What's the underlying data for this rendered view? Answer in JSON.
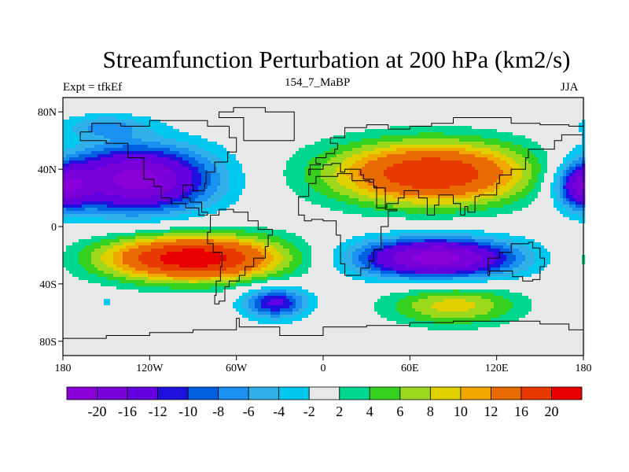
{
  "title": "Streamfunction Perturbation at 200 hPa (km2/s)",
  "left_label": "Expt = tfkEf",
  "center_label": "154_7_MaBP",
  "right_label": "JJA",
  "map": {
    "lon_range": [
      -180,
      180
    ],
    "lat_range": [
      -90,
      90
    ],
    "lon_ticks": [
      {
        "value": -180,
        "label": "180"
      },
      {
        "value": -120,
        "label": "120W"
      },
      {
        "value": -60,
        "label": "60W"
      },
      {
        "value": 0,
        "label": "0"
      },
      {
        "value": 60,
        "label": "60E"
      },
      {
        "value": 120,
        "label": "120E"
      },
      {
        "value": 180,
        "label": "180"
      }
    ],
    "lat_ticks": [
      {
        "value": 80,
        "label": "80N"
      },
      {
        "value": 40,
        "label": "40N"
      },
      {
        "value": 0,
        "label": "0"
      },
      {
        "value": -40,
        "label": "40S"
      },
      {
        "value": -80,
        "label": "80S"
      }
    ],
    "missing_color": "#e8e8e8",
    "features": [
      {
        "name": "north-pacific-low",
        "lon": -130,
        "lat": 33,
        "rlon": 52,
        "rlat": 23,
        "amp": -22
      },
      {
        "name": "east-pacific-west",
        "lon": 180,
        "lat": 28,
        "rlon": 18,
        "rlat": 15,
        "amp": -14
      },
      {
        "name": "south-pacific-high",
        "lon": -90,
        "lat": -22,
        "rlon": 62,
        "rlat": 16,
        "amp": 23
      },
      {
        "name": "south-atlantic-low",
        "lon": -33,
        "lat": -53,
        "rlon": 22,
        "rlat": 11,
        "amp": -13
      },
      {
        "name": "small-low-patch",
        "lon": -150,
        "lat": -52,
        "rlon": 5,
        "rlat": 4,
        "amp": -3
      },
      {
        "name": "eurasia-high",
        "lon": 75,
        "lat": 37,
        "rlon": 70,
        "rlat": 22,
        "amp": 20
      },
      {
        "name": "indian-ocean-low",
        "lon": 78,
        "lat": -22,
        "rlon": 55,
        "rlat": 14,
        "amp": -22
      },
      {
        "name": "southern-ocean-high",
        "lon": 90,
        "lat": -55,
        "rlon": 45,
        "rlat": 14,
        "amp": 9
      },
      {
        "name": "far-northwest",
        "lon": -150,
        "lat": 70,
        "rlon": 30,
        "rlat": 8,
        "amp": -6
      }
    ]
  },
  "colorbar": {
    "colors": [
      "#8a00d8",
      "#7a00d8",
      "#6400e0",
      "#2010e0",
      "#0060e0",
      "#1a90f0",
      "#30b0e8",
      "#00c8ee",
      "#e8e8e8",
      "#00d890",
      "#36d020",
      "#9cd81c",
      "#e0d000",
      "#f0a800",
      "#e86a00",
      "#e83a00",
      "#e80000"
    ],
    "labels": [
      "-20",
      "-16",
      "-12",
      "-10",
      "-8",
      "-6",
      "-4",
      "-2",
      "2",
      "4",
      "6",
      "8",
      "10",
      "12",
      "16",
      "20"
    ]
  }
}
